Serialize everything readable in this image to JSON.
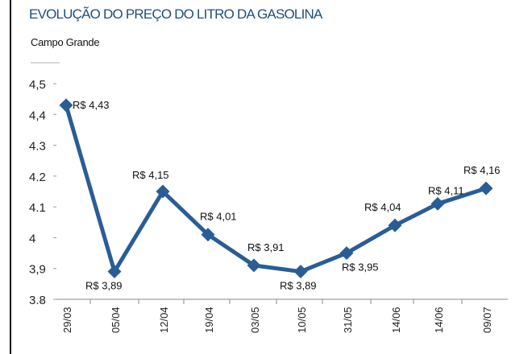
{
  "chart_data": {
    "type": "line",
    "title": "EVOLUÇÃO DO PREÇO DO LITRO DA GASOLINA",
    "subtitle": "Campo Grande",
    "categories": [
      "29/03",
      "05/04",
      "12/04",
      "19/04",
      "03/05",
      "10/05",
      "31/05",
      "14/06",
      "14/06",
      "09/07"
    ],
    "values": [
      4.43,
      3.89,
      4.15,
      4.01,
      3.91,
      3.89,
      3.95,
      4.04,
      4.11,
      4.16
    ],
    "data_labels": [
      "R$ 4,43",
      "R$ 3,89",
      "R$ 4,15",
      "R$ 4,01",
      "R$ 3,91",
      "R$ 3,89",
      "R$ 3,95",
      "R$ 4,04",
      "R$ 4,11",
      "R$ 4,16"
    ],
    "yticks": [
      "3.8",
      "3,9",
      "4",
      "4.1",
      "4.2",
      "4.3",
      "4,4",
      "4,5"
    ],
    "ytick_values": [
      3.8,
      3.9,
      4.0,
      4.1,
      4.2,
      4.3,
      4.4,
      4.5
    ],
    "ylim": [
      3.8,
      4.5
    ],
    "xlabel": "",
    "ylabel": "",
    "grid": false,
    "line_color": "#2a5d96"
  }
}
